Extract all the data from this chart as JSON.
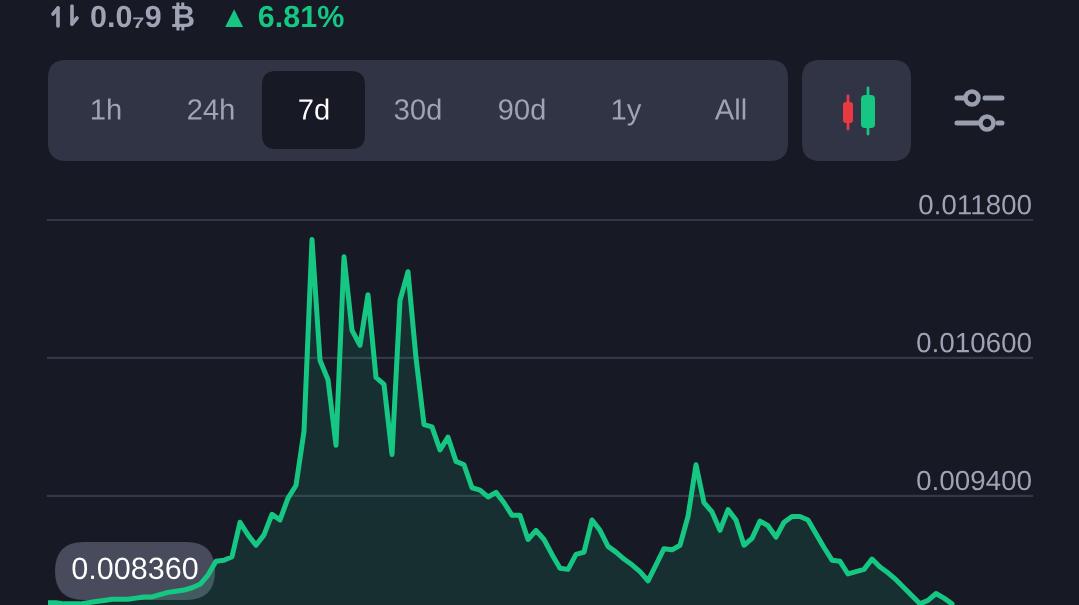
{
  "chart_data": {
    "type": "area",
    "categories": [
      null,
      null,
      null,
      null,
      null,
      null,
      null,
      null,
      null,
      null,
      null,
      null,
      null,
      null,
      null,
      null,
      null,
      null,
      null,
      null,
      null,
      null,
      null,
      null,
      null,
      null,
      null,
      null,
      null,
      null,
      null,
      null,
      null,
      null,
      null,
      null,
      null,
      null,
      null,
      null,
      null,
      null,
      null,
      null,
      null,
      null,
      null,
      null,
      null,
      null,
      null,
      null,
      null,
      null,
      null,
      null,
      null,
      null,
      null,
      null,
      null,
      null,
      null,
      null,
      null,
      null,
      null,
      null,
      null,
      null,
      null,
      null,
      null,
      null,
      null,
      null,
      null,
      null,
      null,
      null,
      null,
      null,
      null,
      null,
      null,
      null,
      null,
      null,
      null,
      null,
      null,
      null,
      null,
      null,
      null,
      null,
      null,
      null,
      null,
      null,
      null,
      null,
      null,
      null,
      null,
      null,
      null,
      null,
      null,
      null,
      null,
      null,
      null,
      null
    ],
    "series": [
      {
        "color": "#16c784",
        "values": [
          0.00847,
          0.00847,
          0.00846,
          0.00846,
          0.00846,
          0.00847,
          0.00848,
          0.00849,
          0.0085,
          0.0085,
          0.0085,
          0.00851,
          0.00852,
          0.00852,
          0.00854,
          0.00856,
          0.00857,
          0.00858,
          0.0086,
          0.00863,
          0.00871,
          0.00883,
          0.00884,
          0.00887,
          0.00917,
          0.00906,
          0.00897,
          0.00906,
          0.00924,
          0.00919,
          0.00938,
          0.00949,
          0.00996,
          0.01163,
          0.01058,
          0.01041,
          0.00984,
          0.01148,
          0.01084,
          0.01071,
          0.01115,
          0.01043,
          0.01037,
          0.00976,
          0.0111,
          0.01135,
          0.0106,
          0.01002,
          0.01,
          0.0098,
          0.00991,
          0.0097,
          0.00967,
          0.00947,
          0.00945,
          0.00939,
          0.00943,
          0.00934,
          0.00923,
          0.00923,
          0.00902,
          0.0091,
          0.00902,
          0.00889,
          0.00877,
          0.00876,
          0.00889,
          0.00891,
          0.00919,
          0.0091,
          0.00896,
          0.00891,
          0.00885,
          0.0088,
          0.00874,
          0.00866,
          0.0088,
          0.00894,
          0.00893,
          0.00897,
          0.00922,
          0.00967,
          0.00934,
          0.00926,
          0.0091,
          0.00928,
          0.00919,
          0.00897,
          0.00903,
          0.00918,
          0.00914,
          0.00904,
          0.00917,
          0.00922,
          0.00922,
          0.00919,
          0.00907,
          0.00895,
          0.00884,
          0.00883,
          0.00872,
          0.00874,
          0.00876,
          0.00885,
          0.00878,
          0.00873,
          0.00867,
          0.0086,
          0.00853,
          0.00846,
          0.00849,
          0.00855,
          0.00851,
          0.00846
        ]
      }
    ],
    "ylim": [
      0.00845,
      0.0118
    ],
    "yticks": [
      {
        "value": 0.0094,
        "label": "0.009400"
      },
      {
        "value": 0.0106,
        "label": "0.010600"
      },
      {
        "value": 0.0118,
        "label": "0.011800"
      }
    ],
    "grid": "y",
    "tick_labels": "y",
    "annotations": [
      "0.0₇9 ₿",
      "▲ 6.81%",
      "1h",
      "24h",
      "7d",
      "30d",
      "90d",
      "1y",
      "All",
      "0.008360"
    ]
  }
}
